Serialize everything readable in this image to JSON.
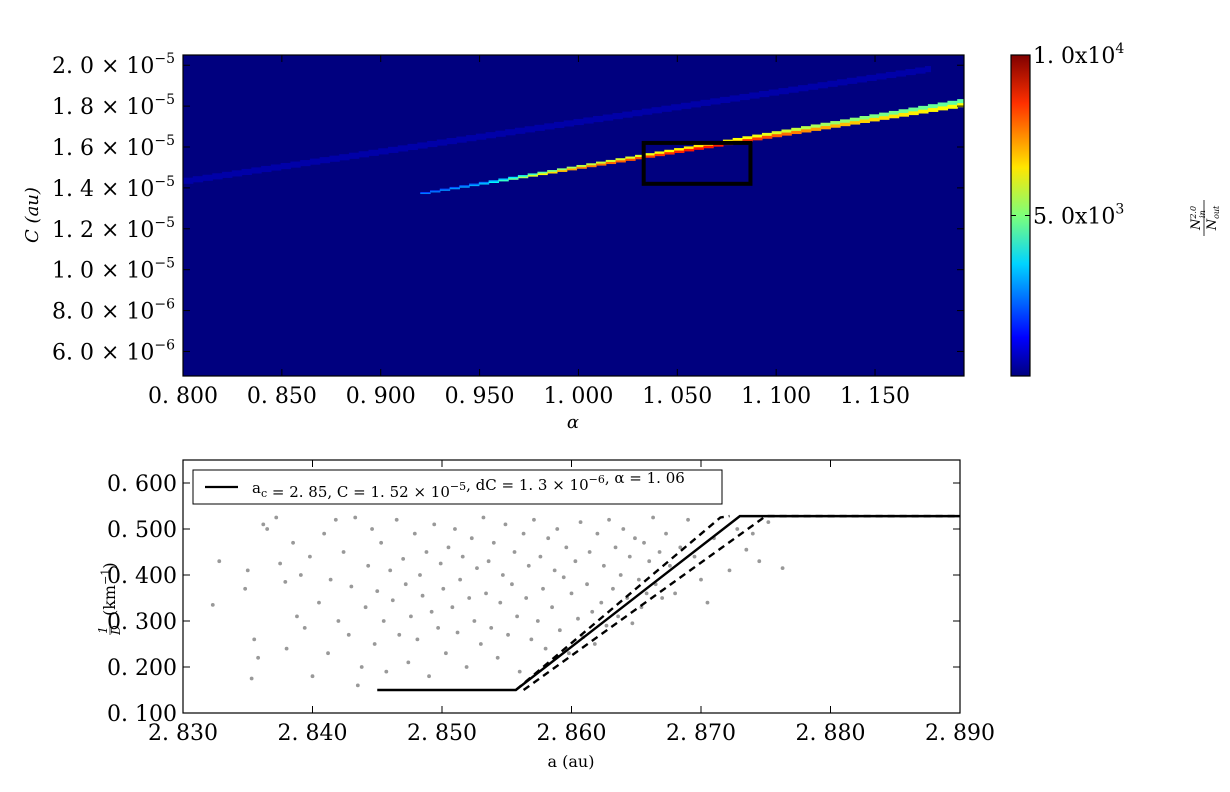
{
  "chart_data": [
    {
      "type": "heatmap",
      "title": "",
      "xlabel": "α",
      "ylabel": "C (au)",
      "xlim": [
        0.8,
        1.195
      ],
      "ylim": [
        4.8e-06,
        2.05e-05
      ],
      "x_ticks": [
        0.8,
        0.85,
        0.9,
        0.95,
        1.0,
        1.05,
        1.1,
        1.15
      ],
      "x_tick_labels": [
        "0. 800",
        "0. 850",
        "0. 900",
        "0. 950",
        "1. 000",
        "1. 050",
        "1. 100",
        "1. 150"
      ],
      "y_ticks": [
        6e-06,
        8e-06,
        1e-05,
        1.2e-05,
        1.4e-05,
        1.6e-05,
        1.8e-05,
        2e-05
      ],
      "y_tick_labels": [
        {
          "mantissa": "6. 0 ×",
          "exp": "−6"
        },
        {
          "mantissa": "8. 0 ×",
          "exp": "−6"
        },
        {
          "mantissa": "1. 0 ×",
          "exp": "−5"
        },
        {
          "mantissa": "1. 2 ×",
          "exp": "−5"
        },
        {
          "mantissa": "1. 4 ×",
          "exp": "−5"
        },
        {
          "mantissa": "1. 6 ×",
          "exp": "−5"
        },
        {
          "mantissa": "1. 8 ×",
          "exp": "−5"
        },
        {
          "mantissa": "2. 0 ×",
          "exp": "−5"
        }
      ],
      "colormap": "jet",
      "background_color": "#00007f",
      "colorbar": {
        "range": [
          0,
          10000
        ],
        "ticks": [
          5000,
          10000
        ],
        "tick_labels": [
          {
            "mantissa": "5. 0x10",
            "exp": "3"
          },
          {
            "mantissa": "1. 0x10",
            "exp": "4"
          }
        ],
        "label_main": "N",
        "label_sup": "2.0",
        "label_sub": "in",
        "label_den": "N",
        "label_den_sub": "out"
      },
      "bands": [
        {
          "name_hint": "upper diagonal band",
          "x_start": 0.8,
          "x_end": 1.178,
          "c_low_start": 1.42e-05,
          "c_low_end": 1.97e-05,
          "c_high_start": 1.45e-05,
          "c_high_end": 2e-05,
          "level": 400
        },
        {
          "name_hint": "lower resonance band",
          "x_start": 0.92,
          "x_end": 1.195,
          "c_low_start": 1.37e-05,
          "c_low_end": 1.8e-05,
          "c_high_start": 1.38e-05,
          "c_high_end": 1.84e-05,
          "level_profile": [
            [
              0.92,
              2400
            ],
            [
              0.95,
              3000
            ],
            [
              0.98,
              6200
            ],
            [
              1.0,
              7400
            ],
            [
              1.03,
              8000
            ],
            [
              1.06,
              8600
            ],
            [
              1.09,
              8200
            ],
            [
              1.12,
              7200
            ],
            [
              1.15,
              6600
            ],
            [
              1.195,
              6200
            ]
          ]
        }
      ],
      "highlight_box": {
        "x0": 1.033,
        "x1": 1.087,
        "c0": 1.42e-05,
        "c1": 1.62e-05
      }
    },
    {
      "type": "scatter",
      "title": "",
      "xlabel": "a (au)",
      "ylabel": "1/D (km⁻¹)",
      "xlim": [
        2.83,
        2.89
      ],
      "ylim": [
        0.1,
        0.65
      ],
      "x_ticks": [
        2.83,
        2.84,
        2.85,
        2.86,
        2.87,
        2.88,
        2.89
      ],
      "x_tick_labels": [
        "2. 830",
        "2. 840",
        "2. 850",
        "2. 860",
        "2. 870",
        "2. 880",
        "2. 890"
      ],
      "y_ticks": [
        0.1,
        0.2,
        0.3,
        0.4,
        0.5,
        0.6
      ],
      "y_tick_labels": [
        "0. 100",
        "0. 200",
        "0. 300",
        "0. 400",
        "0. 500",
        "0. 600"
      ],
      "point_color": "#999999",
      "scatter_points": [
        [
          2.8323,
          0.335
        ],
        [
          2.8328,
          0.43
        ],
        [
          2.8348,
          0.37
        ],
        [
          2.835,
          0.41
        ],
        [
          2.8353,
          0.175
        ],
        [
          2.8355,
          0.26
        ],
        [
          2.8358,
          0.22
        ],
        [
          2.8362,
          0.51
        ],
        [
          2.8365,
          0.5
        ],
        [
          2.8372,
          0.525
        ],
        [
          2.8375,
          0.425
        ],
        [
          2.8379,
          0.385
        ],
        [
          2.838,
          0.24
        ],
        [
          2.8385,
          0.47
        ],
        [
          2.8388,
          0.31
        ],
        [
          2.8391,
          0.4
        ],
        [
          2.8394,
          0.285
        ],
        [
          2.8398,
          0.44
        ],
        [
          2.84,
          0.18
        ],
        [
          2.8405,
          0.34
        ],
        [
          2.8409,
          0.49
        ],
        [
          2.8412,
          0.23
        ],
        [
          2.8414,
          0.39
        ],
        [
          2.8418,
          0.52
        ],
        [
          2.842,
          0.3
        ],
        [
          2.8424,
          0.45
        ],
        [
          2.8428,
          0.27
        ],
        [
          2.843,
          0.375
        ],
        [
          2.8433,
          0.525
        ],
        [
          2.8435,
          0.16
        ],
        [
          2.8438,
          0.2
        ],
        [
          2.8441,
          0.33
        ],
        [
          2.8443,
          0.42
        ],
        [
          2.8446,
          0.5
        ],
        [
          2.8448,
          0.25
        ],
        [
          2.845,
          0.365
        ],
        [
          2.8453,
          0.47
        ],
        [
          2.8455,
          0.3
        ],
        [
          2.8457,
          0.19
        ],
        [
          2.846,
          0.41
        ],
        [
          2.8462,
          0.345
        ],
        [
          2.8465,
          0.52
        ],
        [
          2.8467,
          0.27
        ],
        [
          2.847,
          0.435
        ],
        [
          2.8472,
          0.38
        ],
        [
          2.8474,
          0.21
        ],
        [
          2.8476,
          0.31
        ],
        [
          2.8479,
          0.49
        ],
        [
          2.8481,
          0.26
        ],
        [
          2.8483,
          0.4
        ],
        [
          2.8485,
          0.355
        ],
        [
          2.8488,
          0.45
        ],
        [
          2.849,
          0.18
        ],
        [
          2.8492,
          0.32
        ],
        [
          2.8494,
          0.51
        ],
        [
          2.8497,
          0.285
        ],
        [
          2.8499,
          0.425
        ],
        [
          2.8501,
          0.37
        ],
        [
          2.8503,
          0.23
        ],
        [
          2.8505,
          0.46
        ],
        [
          2.8508,
          0.33
        ],
        [
          2.851,
          0.5
        ],
        [
          2.8512,
          0.275
        ],
        [
          2.8514,
          0.39
        ],
        [
          2.8516,
          0.44
        ],
        [
          2.8519,
          0.2
        ],
        [
          2.8521,
          0.35
        ],
        [
          2.8523,
          0.48
        ],
        [
          2.8525,
          0.3
        ],
        [
          2.8527,
          0.415
        ],
        [
          2.853,
          0.25
        ],
        [
          2.8532,
          0.525
        ],
        [
          2.8534,
          0.36
        ],
        [
          2.8536,
          0.43
        ],
        [
          2.8538,
          0.285
        ],
        [
          2.854,
          0.47
        ],
        [
          2.8543,
          0.22
        ],
        [
          2.8545,
          0.34
        ],
        [
          2.8547,
          0.4
        ],
        [
          2.8549,
          0.51
        ],
        [
          2.8551,
          0.27
        ],
        [
          2.8554,
          0.38
        ],
        [
          2.8556,
          0.45
        ],
        [
          2.8558,
          0.31
        ],
        [
          2.856,
          0.19
        ],
        [
          2.8563,
          0.49
        ],
        [
          2.8565,
          0.35
        ],
        [
          2.8567,
          0.42
        ],
        [
          2.8569,
          0.26
        ],
        [
          2.8571,
          0.52
        ],
        [
          2.8574,
          0.3
        ],
        [
          2.8576,
          0.44
        ],
        [
          2.8578,
          0.37
        ],
        [
          2.858,
          0.24
        ],
        [
          2.8582,
          0.48
        ],
        [
          2.8585,
          0.33
        ],
        [
          2.8587,
          0.41
        ],
        [
          2.8589,
          0.5
        ],
        [
          2.8591,
          0.28
        ],
        [
          2.8594,
          0.395
        ],
        [
          2.8596,
          0.46
        ],
        [
          2.8598,
          0.23
        ],
        [
          2.86,
          0.36
        ],
        [
          2.8603,
          0.43
        ],
        [
          2.8605,
          0.305
        ],
        [
          2.8607,
          0.515
        ],
        [
          2.8609,
          0.265
        ],
        [
          2.8612,
          0.38
        ],
        [
          2.8614,
          0.45
        ],
        [
          2.8616,
          0.32
        ],
        [
          2.8618,
          0.25
        ],
        [
          2.862,
          0.49
        ],
        [
          2.8623,
          0.34
        ],
        [
          2.8625,
          0.42
        ],
        [
          2.8627,
          0.29
        ],
        [
          2.8629,
          0.52
        ],
        [
          2.8632,
          0.37
        ],
        [
          2.8634,
          0.46
        ],
        [
          2.8636,
          0.31
        ],
        [
          2.8638,
          0.4
        ],
        [
          2.864,
          0.5
        ],
        [
          2.8643,
          0.35
        ],
        [
          2.8645,
          0.44
        ],
        [
          2.8647,
          0.295
        ],
        [
          2.8649,
          0.48
        ],
        [
          2.8652,
          0.39
        ],
        [
          2.8654,
          0.33
        ],
        [
          2.8656,
          0.47
        ],
        [
          2.8658,
          0.36
        ],
        [
          2.866,
          0.43
        ],
        [
          2.8663,
          0.525
        ],
        [
          2.8665,
          0.38
        ],
        [
          2.8668,
          0.45
        ],
        [
          2.867,
          0.35
        ],
        [
          2.8673,
          0.49
        ],
        [
          2.8676,
          0.42
        ],
        [
          2.868,
          0.36
        ],
        [
          2.8684,
          0.46
        ],
        [
          2.869,
          0.52
        ],
        [
          2.8695,
          0.44
        ],
        [
          2.87,
          0.39
        ],
        [
          2.8705,
          0.34
        ],
        [
          2.871,
          0.48
        ],
        [
          2.8722,
          0.41
        ],
        [
          2.8728,
          0.5
        ],
        [
          2.8735,
          0.455
        ],
        [
          2.874,
          0.49
        ],
        [
          2.8745,
          0.43
        ],
        [
          2.8752,
          0.515
        ],
        [
          2.8763,
          0.415
        ]
      ],
      "series": [
        {
          "style": "solid",
          "x": [
            2.845,
            2.8557,
            2.873,
            2.89
          ],
          "y": [
            0.15,
            0.15,
            0.528,
            0.528
          ]
        },
        {
          "style": "dashed",
          "x": [
            2.8557,
            2.8715,
            2.8722
          ],
          "y": [
            0.15,
            0.525,
            0.528
          ]
        },
        {
          "style": "dashed",
          "x": [
            2.8563,
            2.875,
            2.89
          ],
          "y": [
            0.15,
            0.528,
            0.528
          ]
        }
      ],
      "legend": {
        "position": "top-left",
        "text_parts": [
          {
            "t": "a"
          },
          {
            "t": "c",
            "sub": true
          },
          {
            "t": " = 2. 85,  C = 1. 52 × 10"
          },
          {
            "t": "−5",
            "sup": true
          },
          {
            "t": ",  dC = 1. 3 × 10"
          },
          {
            "t": "−6",
            "sup": true
          },
          {
            "t": ",  α = 1. 06"
          }
        ]
      }
    }
  ]
}
